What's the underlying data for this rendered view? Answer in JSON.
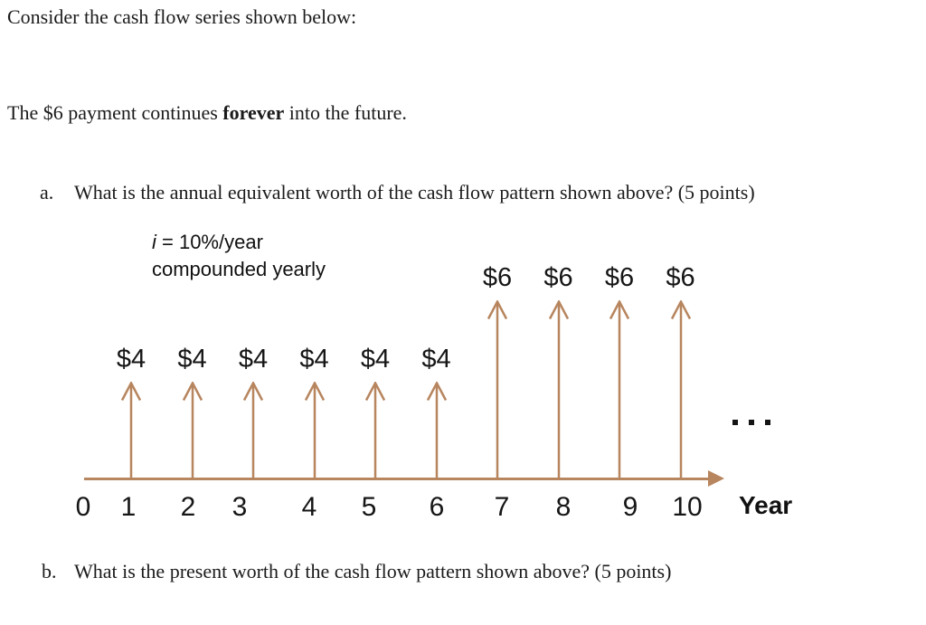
{
  "document": {
    "intro_line": "Consider the cash flow series shown below:",
    "forever_line": {
      "prefix": "The $6 payment continues ",
      "bold": "forever",
      "suffix": " into the future."
    },
    "questions": [
      {
        "label": "a.",
        "text": "What is the annual equivalent worth of the cash flow pattern shown above? (5 points)"
      },
      {
        "label": "b.",
        "text": "What is the present worth of the cash flow pattern shown above? (5 points)"
      }
    ]
  },
  "chart_data": {
    "type": "bar",
    "variant": "cash-flow-diagram",
    "xlabel": "Year",
    "x_ticks": [
      "0",
      "1",
      "2",
      "3",
      "4",
      "5",
      "6",
      "7",
      "8",
      "9",
      "10"
    ],
    "axis_range_years": [
      0,
      10
    ],
    "arrow_direction": "up",
    "arrow_color": "#b7855e",
    "flows": [
      {
        "year": 1,
        "value": 4,
        "label": "$4"
      },
      {
        "year": 2,
        "value": 4,
        "label": "$4"
      },
      {
        "year": 3,
        "value": 4,
        "label": "$4"
      },
      {
        "year": 4,
        "value": 4,
        "label": "$4"
      },
      {
        "year": 5,
        "value": 4,
        "label": "$4"
      },
      {
        "year": 6,
        "value": 4,
        "label": "$4"
      },
      {
        "year": 7,
        "value": 6,
        "label": "$6"
      },
      {
        "year": 8,
        "value": 6,
        "label": "$6"
      },
      {
        "year": 9,
        "value": 6,
        "label": "$6"
      },
      {
        "year": 10,
        "value": 6,
        "label": "$6"
      }
    ],
    "annotations": {
      "rate_line1_italic": "i",
      "rate_line1_rest": " = 10%/year",
      "rate_line2": "compounded yearly",
      "continuation_ellipsis": ". . ."
    }
  }
}
